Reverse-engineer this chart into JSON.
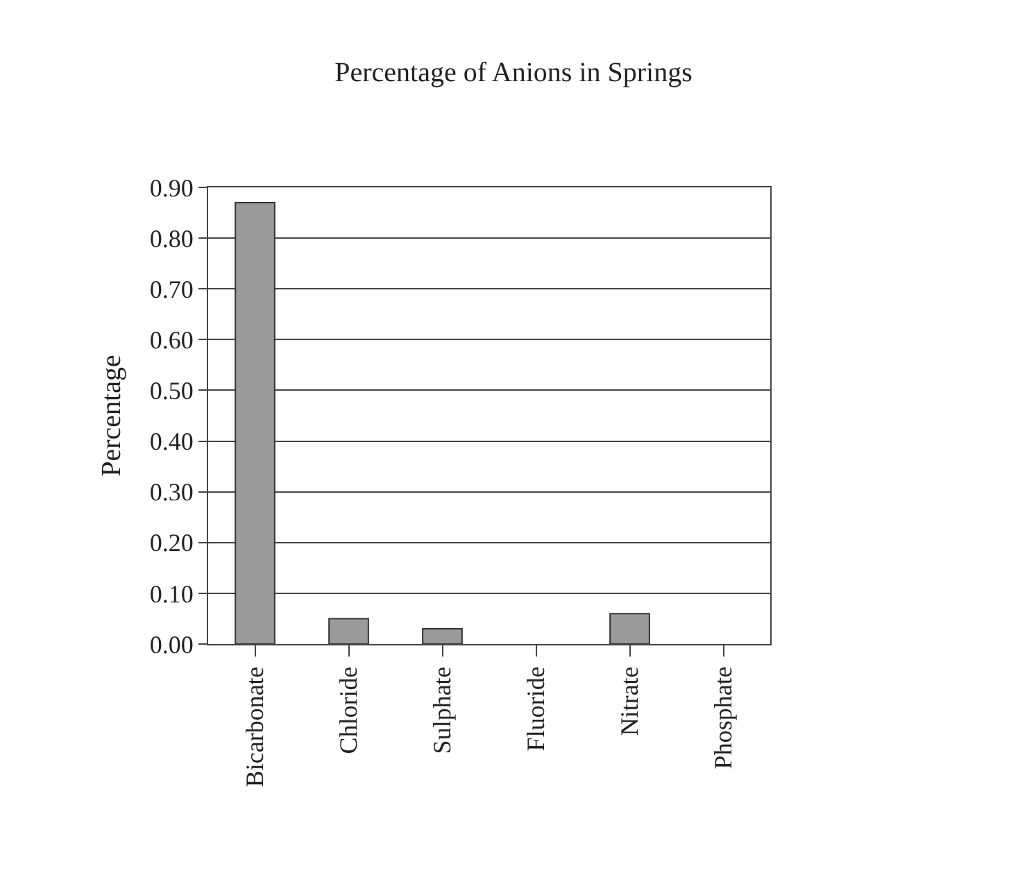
{
  "chart_data": {
    "type": "bar",
    "title": "Percentage of Anions in Springs",
    "ylabel": "Percentage",
    "categories": [
      "Bicarbonate",
      "Chloride",
      "Sulphate",
      "Fluoride",
      "Nitrate",
      "Phosphate"
    ],
    "values": [
      0.87,
      0.05,
      0.03,
      0,
      0.06,
      0
    ],
    "color": "#9a9a9a",
    "ylim": [
      0,
      0.9
    ],
    "yticks": [
      {
        "value": 0,
        "label": "0.00"
      },
      {
        "value": 0.1,
        "label": "0.10"
      },
      {
        "value": 0.2,
        "label": "0.20"
      },
      {
        "value": 0.3,
        "label": "0.30"
      },
      {
        "value": 0.4,
        "label": "0.40"
      },
      {
        "value": 0.5,
        "label": "0.50"
      },
      {
        "value": 0.6,
        "label": "0.60"
      },
      {
        "value": 0.7,
        "label": "0.70"
      },
      {
        "value": 0.8,
        "label": "0.80"
      },
      {
        "value": 0.9,
        "label": "0.90"
      }
    ],
    "grid": "y",
    "legend": false
  }
}
